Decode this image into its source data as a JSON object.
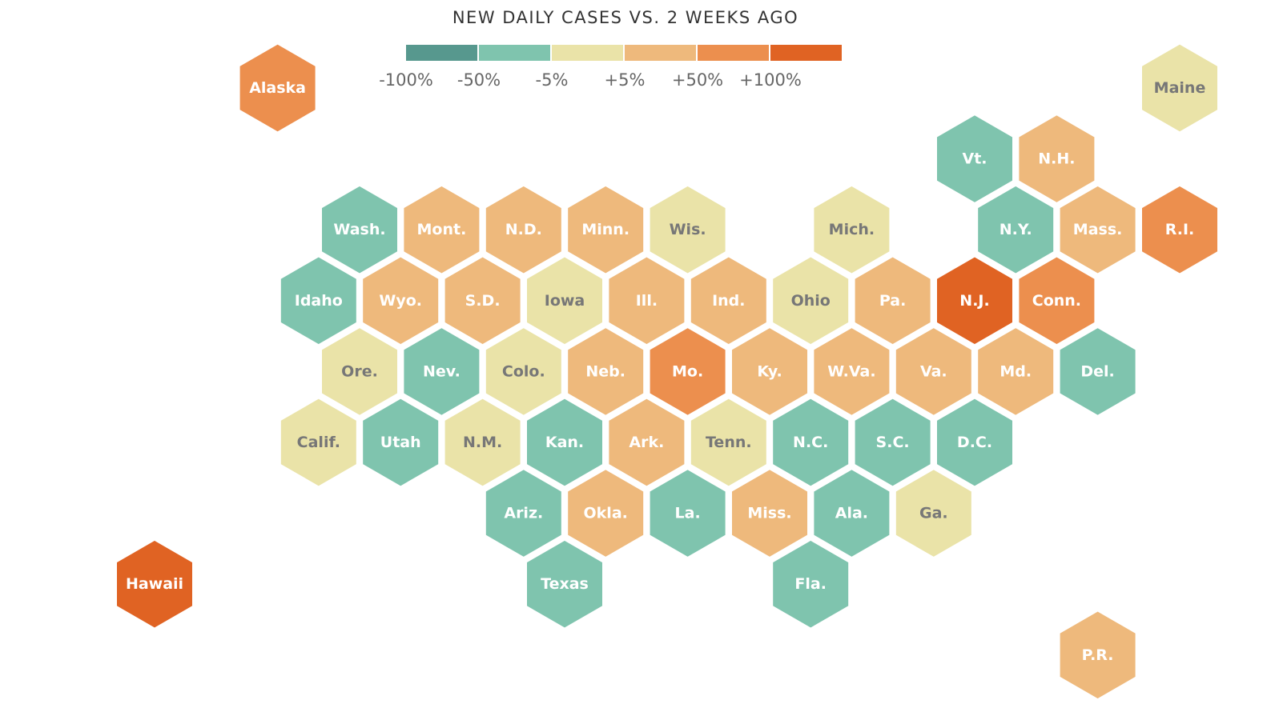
{
  "map": {
    "title": "NEW DAILY CASES VS. 2 WEEKS AGO",
    "legend": {
      "colors": [
        "#57988e",
        "#7fc4ae",
        "#eae3a8",
        "#eeb97c",
        "#ec8f4e",
        "#e06323"
      ],
      "labels": [
        "-100%",
        "-50%",
        "-5%",
        "+5%",
        "+50%",
        "+100%"
      ]
    },
    "categories": [
      {
        "id": "n100",
        "range": "-100% to -50%",
        "color": "#57988e",
        "text_color": "#ffffff"
      },
      {
        "id": "n50",
        "range": "-50% to -5%",
        "color": "#7fc4ae",
        "text_color": "#ffffff"
      },
      {
        "id": "flat",
        "range": "-5% to +5%",
        "color": "#eae3a8",
        "text_color": "#777777"
      },
      {
        "id": "p5",
        "range": "+5% to +50%",
        "color": "#eeb97c",
        "text_color": "#ffffff"
      },
      {
        "id": "p50",
        "range": "+50% to +100%",
        "color": "#ec8f4e",
        "text_color": "#ffffff"
      },
      {
        "id": "p100",
        "range": "+100% or more",
        "color": "#e06323",
        "text_color": "#ffffff"
      }
    ],
    "states": [
      {
        "label": "Alaska",
        "row": 0,
        "col": 1,
        "cat": "p50"
      },
      {
        "label": "Maine",
        "row": 0,
        "col": 12,
        "cat": "flat"
      },
      {
        "label": "Vt.",
        "row": 1,
        "col": 10,
        "cat": "n50"
      },
      {
        "label": "N.H.",
        "row": 1,
        "col": 11,
        "cat": "p5"
      },
      {
        "label": "Wash.",
        "row": 2,
        "col": 2,
        "cat": "n50"
      },
      {
        "label": "Mont.",
        "row": 2,
        "col": 3,
        "cat": "p5"
      },
      {
        "label": "N.D.",
        "row": 2,
        "col": 4,
        "cat": "p5"
      },
      {
        "label": "Minn.",
        "row": 2,
        "col": 5,
        "cat": "p5"
      },
      {
        "label": "Wis.",
        "row": 2,
        "col": 6,
        "cat": "flat"
      },
      {
        "label": "Mich.",
        "row": 2,
        "col": 8,
        "cat": "flat"
      },
      {
        "label": "N.Y.",
        "row": 2,
        "col": 10,
        "cat": "n50"
      },
      {
        "label": "Mass.",
        "row": 2,
        "col": 11,
        "cat": "p5"
      },
      {
        "label": "R.I.",
        "row": 2,
        "col": 12,
        "cat": "p50"
      },
      {
        "label": "Idaho",
        "row": 3,
        "col": 2,
        "cat": "n50"
      },
      {
        "label": "Wyo.",
        "row": 3,
        "col": 3,
        "cat": "p5"
      },
      {
        "label": "S.D.",
        "row": 3,
        "col": 4,
        "cat": "p5"
      },
      {
        "label": "Iowa",
        "row": 3,
        "col": 5,
        "cat": "flat"
      },
      {
        "label": "Ill.",
        "row": 3,
        "col": 6,
        "cat": "p5"
      },
      {
        "label": "Ind.",
        "row": 3,
        "col": 7,
        "cat": "p5"
      },
      {
        "label": "Ohio",
        "row": 3,
        "col": 8,
        "cat": "flat"
      },
      {
        "label": "Pa.",
        "row": 3,
        "col": 9,
        "cat": "p5"
      },
      {
        "label": "N.J.",
        "row": 3,
        "col": 10,
        "cat": "p100"
      },
      {
        "label": "Conn.",
        "row": 3,
        "col": 11,
        "cat": "p50"
      },
      {
        "label": "Ore.",
        "row": 4,
        "col": 2,
        "cat": "flat"
      },
      {
        "label": "Nev.",
        "row": 4,
        "col": 3,
        "cat": "n50"
      },
      {
        "label": "Colo.",
        "row": 4,
        "col": 4,
        "cat": "flat"
      },
      {
        "label": "Neb.",
        "row": 4,
        "col": 5,
        "cat": "p5"
      },
      {
        "label": "Mo.",
        "row": 4,
        "col": 6,
        "cat": "p50"
      },
      {
        "label": "Ky.",
        "row": 4,
        "col": 7,
        "cat": "p5"
      },
      {
        "label": "W.Va.",
        "row": 4,
        "col": 8,
        "cat": "p5"
      },
      {
        "label": "Va.",
        "row": 4,
        "col": 9,
        "cat": "p5"
      },
      {
        "label": "Md.",
        "row": 4,
        "col": 10,
        "cat": "p5"
      },
      {
        "label": "Del.",
        "row": 4,
        "col": 11,
        "cat": "n50"
      },
      {
        "label": "Calif.",
        "row": 5,
        "col": 2,
        "cat": "flat"
      },
      {
        "label": "Utah",
        "row": 5,
        "col": 3,
        "cat": "n50"
      },
      {
        "label": "N.M.",
        "row": 5,
        "col": 4,
        "cat": "flat"
      },
      {
        "label": "Kan.",
        "row": 5,
        "col": 5,
        "cat": "n50"
      },
      {
        "label": "Ark.",
        "row": 5,
        "col": 6,
        "cat": "p5"
      },
      {
        "label": "Tenn.",
        "row": 5,
        "col": 7,
        "cat": "flat"
      },
      {
        "label": "N.C.",
        "row": 5,
        "col": 8,
        "cat": "n50"
      },
      {
        "label": "S.C.",
        "row": 5,
        "col": 9,
        "cat": "n50"
      },
      {
        "label": "D.C.",
        "row": 5,
        "col": 10,
        "cat": "n50"
      },
      {
        "label": "Ariz.",
        "row": 6,
        "col": 4,
        "cat": "n50"
      },
      {
        "label": "Okla.",
        "row": 6,
        "col": 5,
        "cat": "p5"
      },
      {
        "label": "La.",
        "row": 6,
        "col": 6,
        "cat": "n50"
      },
      {
        "label": "Miss.",
        "row": 6,
        "col": 7,
        "cat": "p5"
      },
      {
        "label": "Ala.",
        "row": 6,
        "col": 8,
        "cat": "n50"
      },
      {
        "label": "Ga.",
        "row": 6,
        "col": 9,
        "cat": "flat"
      },
      {
        "label": "Hawaii",
        "row": 7,
        "col": 0,
        "cat": "p100"
      },
      {
        "label": "Texas",
        "row": 7,
        "col": 5,
        "cat": "n50"
      },
      {
        "label": "Fla.",
        "row": 7,
        "col": 8,
        "cat": "n50"
      },
      {
        "label": "P.R.",
        "row": 8,
        "col": 11,
        "cat": "p5"
      }
    ]
  }
}
